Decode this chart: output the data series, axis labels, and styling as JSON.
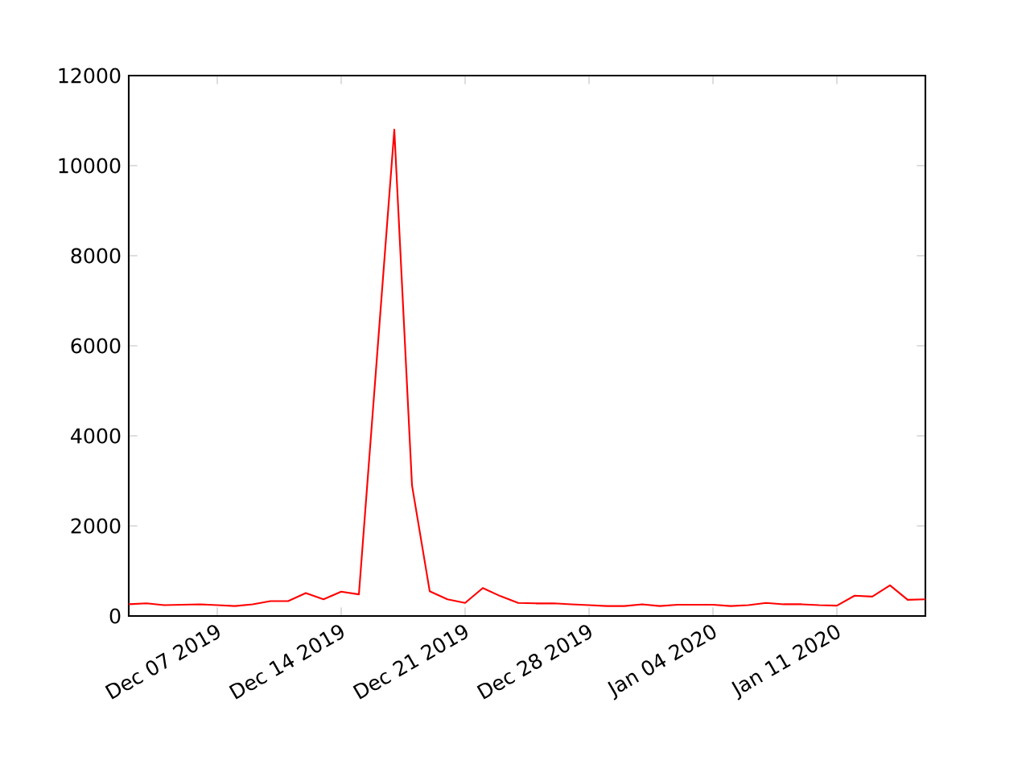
{
  "chart_data": {
    "type": "line",
    "x": [
      "2019-12-02",
      "2019-12-03",
      "2019-12-04",
      "2019-12-05",
      "2019-12-06",
      "2019-12-07",
      "2019-12-08",
      "2019-12-09",
      "2019-12-10",
      "2019-12-11",
      "2019-12-12",
      "2019-12-13",
      "2019-12-14",
      "2019-12-15",
      "2019-12-16",
      "2019-12-17",
      "2019-12-18",
      "2019-12-19",
      "2019-12-20",
      "2019-12-21",
      "2019-12-22",
      "2019-12-23",
      "2019-12-24",
      "2019-12-25",
      "2019-12-26",
      "2019-12-27",
      "2019-12-28",
      "2019-12-29",
      "2019-12-30",
      "2019-12-31",
      "2020-01-01",
      "2020-01-02",
      "2020-01-03",
      "2020-01-04",
      "2020-01-05",
      "2020-01-06",
      "2020-01-07",
      "2020-01-08",
      "2020-01-09",
      "2020-01-10",
      "2020-01-11",
      "2020-01-12",
      "2020-01-13",
      "2020-01-14",
      "2020-01-15",
      "2020-01-16"
    ],
    "series": [
      {
        "color": "#ff0000",
        "values": [
          260,
          280,
          240,
          250,
          260,
          240,
          220,
          260,
          330,
          330,
          510,
          370,
          540,
          480,
          5640,
          10800,
          2900,
          550,
          370,
          290,
          620,
          440,
          290,
          280,
          280,
          260,
          240,
          220,
          220,
          260,
          220,
          250,
          250,
          250,
          220,
          240,
          290,
          260,
          260,
          240,
          230,
          450,
          430,
          680,
          360,
          370
        ]
      }
    ],
    "xlim": [
      "2019-12-02",
      "2020-01-16"
    ],
    "xticks": [
      {
        "value": "2019-12-07",
        "label": "Dec 07 2019"
      },
      {
        "value": "2019-12-14",
        "label": "Dec 14 2019"
      },
      {
        "value": "2019-12-21",
        "label": "Dec 21 2019"
      },
      {
        "value": "2019-12-28",
        "label": "Dec 28 2019"
      },
      {
        "value": "2020-01-04",
        "label": "Jan 04 2020"
      },
      {
        "value": "2020-01-11",
        "label": "Jan 11 2020"
      }
    ],
    "ylim": [
      0,
      12000
    ],
    "yticks": [
      0,
      2000,
      4000,
      6000,
      8000,
      10000,
      12000
    ],
    "grid": false,
    "marker": "none",
    "line_style": "solid"
  }
}
